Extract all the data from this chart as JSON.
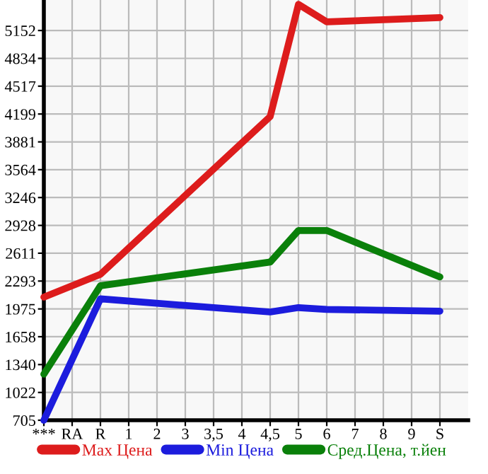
{
  "chart_data": {
    "type": "line",
    "categories": [
      "***",
      "RA",
      "R",
      "1",
      "2",
      "3",
      "3,5",
      "4",
      "4,5",
      "5",
      "6",
      "7",
      "8",
      "9",
      "S"
    ],
    "series": [
      {
        "name": "Max Цена",
        "color": "#dd1c1c",
        "values": [
          2110,
          null,
          2370,
          null,
          null,
          null,
          null,
          null,
          4170,
          5450,
          5250,
          null,
          null,
          null,
          5300
        ]
      },
      {
        "name": "Min Цена",
        "color": "#1c1cdd",
        "values": [
          705,
          null,
          2090,
          null,
          null,
          null,
          null,
          null,
          1940,
          1990,
          1970,
          null,
          null,
          null,
          1950
        ]
      },
      {
        "name": "Сред.Цена, т.йен",
        "color": "#0a800a",
        "values": [
          1230,
          null,
          2240,
          null,
          null,
          null,
          null,
          null,
          2510,
          2870,
          2870,
          null,
          null,
          null,
          2340
        ]
      }
    ],
    "ylim": [
      705,
      5500
    ],
    "yticks": [
      705,
      1022,
      1340,
      1658,
      1975,
      2293,
      2611,
      2928,
      3246,
      3564,
      3881,
      4199,
      4517,
      4834,
      5152
    ],
    "grid": true,
    "legend": "bottom",
    "marker": "none",
    "line_style": "solid"
  }
}
